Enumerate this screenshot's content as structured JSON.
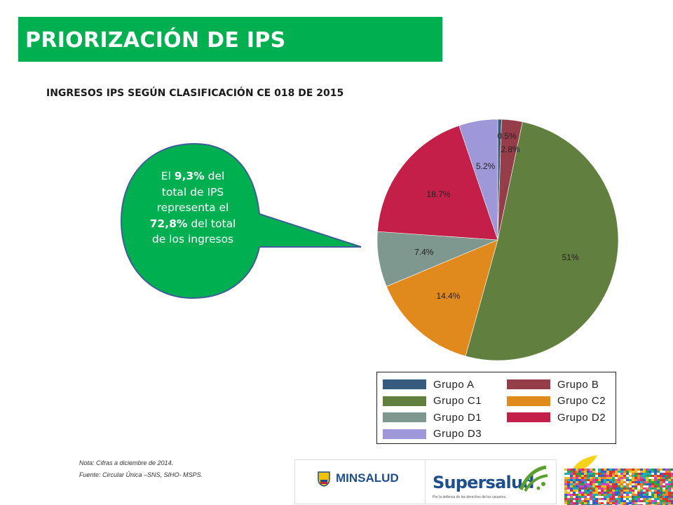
{
  "title": "PRIORIZACIÓN DE IPS",
  "chart_data": {
    "type": "pie",
    "title": "INGRESOS IPS SEGÚN CLASIFICACIÓN CE 018 DE 2015",
    "slices": [
      {
        "name": "Grupo A",
        "value": 0.5,
        "label": "0.5%",
        "color": "#375a7f"
      },
      {
        "name": "Grupo B",
        "value": 2.8,
        "label": "2.8%",
        "color": "#953e4a"
      },
      {
        "name": "Grupo C1",
        "value": 51,
        "label": "51%",
        "color": "#617f3e"
      },
      {
        "name": "Grupo C2",
        "value": 14.4,
        "label": "14.4%",
        "color": "#e08a1e"
      },
      {
        "name": "Grupo D1",
        "value": 7.4,
        "label": "7.4%",
        "color": "#7e978f"
      },
      {
        "name": "Grupo D2",
        "value": 18.7,
        "label": "18.7%",
        "color": "#c41f48"
      },
      {
        "name": "Grupo D3",
        "value": 5.2,
        "label": "5.2%",
        "color": "#9e98d8"
      }
    ],
    "legend_position": "bottom-right"
  },
  "callout": {
    "p1": "El ",
    "b1": "9,3%",
    "p2": " del total de IPS representa el ",
    "b2": "72,8%",
    "p3": " del total de los ingresos",
    "fill_color": "#00b050",
    "border_color": "#3c5f9a"
  },
  "notes": {
    "nota": "Nota: Cifras a diciembre de 2014.",
    "fuente": "Fuente: Circular Única –SNS, SIHO- MSPS."
  },
  "logos": {
    "minsalud": "MINSALUD",
    "supersalud": "Supersalud",
    "supersalud_tagline": "Por la defensa de los derechos de los usuarios."
  }
}
